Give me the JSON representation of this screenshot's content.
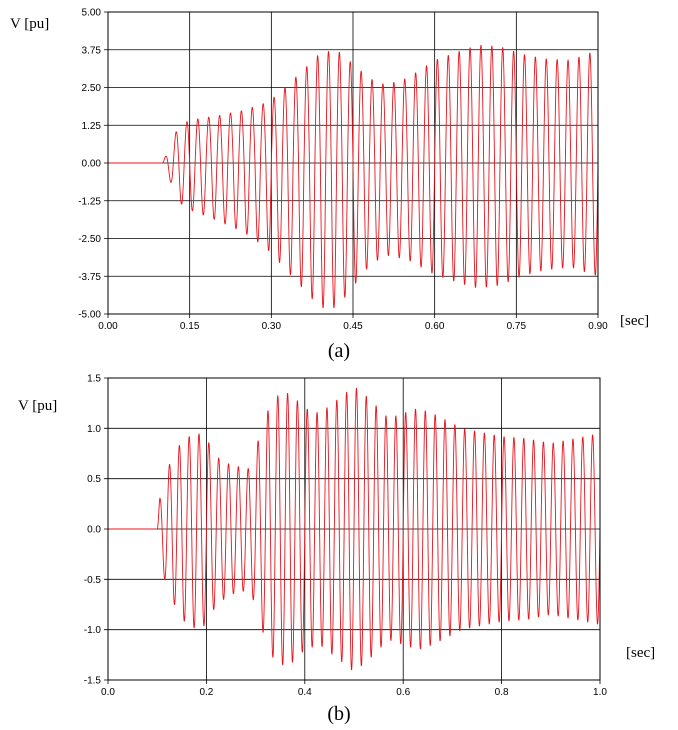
{
  "chart_data": [
    {
      "type": "line",
      "caption": "(a)",
      "ylabel": "V [pu]",
      "xlabel": "[sec]",
      "xlim": [
        0,
        0.9
      ],
      "ylim": [
        -5,
        5
      ],
      "x_ticks": [
        "0.00",
        "0.15",
        "0.30",
        "0.45",
        "0.60",
        "0.75",
        "0.90"
      ],
      "y_ticks": [
        "5.00",
        "3.75",
        "2.50",
        "1.25",
        "0.00",
        "-1.25",
        "-2.50",
        "-3.75",
        "-5.00"
      ],
      "grid": true,
      "color": "#e8141c",
      "waveform": {
        "onset": 0.1,
        "cycle_period": 0.02,
        "envelope": [
          [
            0.1,
            0.0
          ],
          [
            0.11,
            0.4
          ],
          [
            0.13,
            1.3
          ],
          [
            0.15,
            1.55
          ],
          [
            0.2,
            1.9
          ],
          [
            0.25,
            2.3
          ],
          [
            0.29,
            2.8
          ],
          [
            0.3,
            3.0
          ],
          [
            0.33,
            3.6
          ],
          [
            0.36,
            4.2
          ],
          [
            0.39,
            4.8
          ],
          [
            0.42,
            4.8
          ],
          [
            0.45,
            4.1
          ],
          [
            0.48,
            3.4
          ],
          [
            0.51,
            3.05
          ],
          [
            0.55,
            3.2
          ],
          [
            0.6,
            3.7
          ],
          [
            0.65,
            4.0
          ],
          [
            0.68,
            4.15
          ],
          [
            0.72,
            4.05
          ],
          [
            0.76,
            3.75
          ],
          [
            0.8,
            3.55
          ],
          [
            0.85,
            3.45
          ],
          [
            0.9,
            3.75
          ]
        ],
        "asymmetry": [
          [
            0.1,
            0.0
          ],
          [
            0.2,
            0.18
          ],
          [
            0.3,
            0.3
          ],
          [
            0.45,
            0.2
          ],
          [
            0.6,
            0.08
          ],
          [
            0.9,
            0.0
          ]
        ]
      }
    },
    {
      "type": "line",
      "caption": "(b)",
      "ylabel": "V [pu]",
      "xlabel": "[sec]",
      "xlim": [
        0,
        1.0
      ],
      "ylim": [
        -1.5,
        1.5
      ],
      "x_ticks": [
        "0.0",
        "0.2",
        "0.4",
        "0.6",
        "0.8",
        "1.0"
      ],
      "y_ticks": [
        "1.5",
        "1.0",
        "0.5",
        "0.0",
        "-0.5",
        "-1.0",
        "-1.5"
      ],
      "grid": true,
      "color": "#e8141c",
      "waveform": {
        "onset": 0.1,
        "cycle_period": 0.02,
        "envelope": [
          [
            0.1,
            0.0
          ],
          [
            0.105,
            0.3
          ],
          [
            0.12,
            0.6
          ],
          [
            0.15,
            0.9
          ],
          [
            0.18,
            1.0
          ],
          [
            0.2,
            0.95
          ],
          [
            0.22,
            0.75
          ],
          [
            0.25,
            0.65
          ],
          [
            0.29,
            0.6
          ],
          [
            0.3,
            0.8
          ],
          [
            0.33,
            1.25
          ],
          [
            0.35,
            1.35
          ],
          [
            0.37,
            1.35
          ],
          [
            0.4,
            1.2
          ],
          [
            0.43,
            1.15
          ],
          [
            0.47,
            1.3
          ],
          [
            0.5,
            1.42
          ],
          [
            0.53,
            1.3
          ],
          [
            0.57,
            1.1
          ],
          [
            0.6,
            1.15
          ],
          [
            0.63,
            1.2
          ],
          [
            0.66,
            1.15
          ],
          [
            0.7,
            1.05
          ],
          [
            0.72,
            1.0
          ],
          [
            0.8,
            0.92
          ],
          [
            0.85,
            0.9
          ],
          [
            0.9,
            0.85
          ],
          [
            1.0,
            0.95
          ]
        ],
        "asymmetry": [
          [
            0.1,
            0.0
          ],
          [
            0.2,
            0.05
          ],
          [
            0.3,
            0.0
          ],
          [
            0.5,
            0.0
          ],
          [
            1.0,
            0.0
          ]
        ]
      }
    }
  ]
}
